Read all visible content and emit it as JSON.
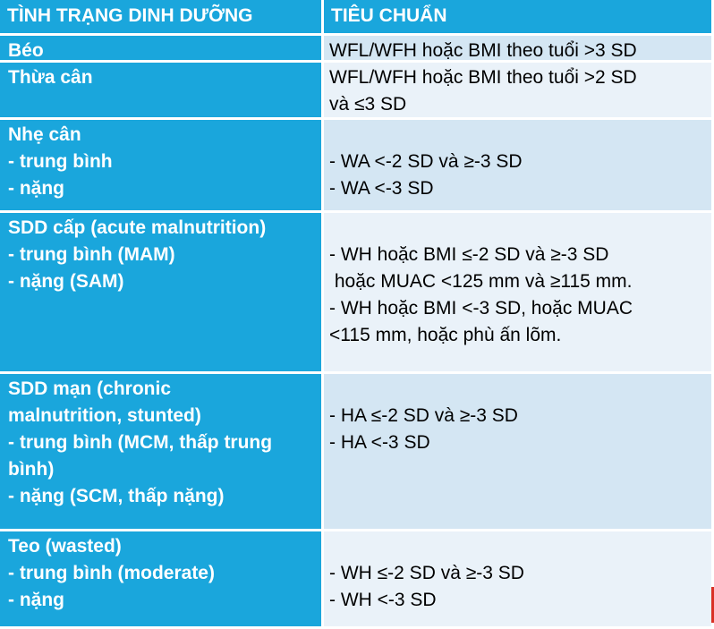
{
  "header": {
    "col1": "TÌNH TRẠNG DINH DƯỠNG",
    "col2": "TIÊU CHUẨN"
  },
  "rows": [
    {
      "status": [
        "Béo"
      ],
      "criteria": [
        "WFL/WFH hoặc BMI theo tuổi >3 SD"
      ]
    },
    {
      "status": [
        "Thừa cân"
      ],
      "criteria": [
        "WFL/WFH hoặc BMI theo tuổi >2 SD",
        "và ≤3 SD"
      ]
    },
    {
      "status": [
        "Nhẹ cân",
        "- trung bình",
        "- nặng"
      ],
      "criteria": [
        "- WA <-2 SD và ≥-3 SD",
        "- WA <-3 SD"
      ]
    },
    {
      "status": [
        "SDD cấp (acute malnutrition)",
        "- trung bình (MAM)",
        "",
        "- nặng (SAM)"
      ],
      "criteria": [
        "- WH hoặc BMI ≤-2 SD và ≥-3 SD",
        " hoặc MUAC <125 mm và ≥115 mm.",
        "- WH hoặc BMI <-3 SD, hoặc MUAC",
        "<115 mm, hoặc phù ấn lõm."
      ]
    },
    {
      "status": [
        "SDD mạn (chronic",
        "malnutrition, stunted)",
        "- trung bình (MCM, thấp trung",
        "bình)",
        "- nặng (SCM, thấp nặng)"
      ],
      "criteria": [
        "- HA ≤-2 SD và ≥-3 SD",
        "- HA <-3 SD"
      ]
    },
    {
      "status": [
        "Teo (wasted)",
        "- trung bình (moderate)",
        "- nặng"
      ],
      "criteria": [
        "- WH ≤-2 SD và ≥-3 SD",
        "- WH <-3 SD"
      ]
    }
  ],
  "colors": {
    "header_bg": "#1aa6dc",
    "row_bg_a": "#d4e6f3",
    "row_bg_b": "#eaf2f9"
  }
}
